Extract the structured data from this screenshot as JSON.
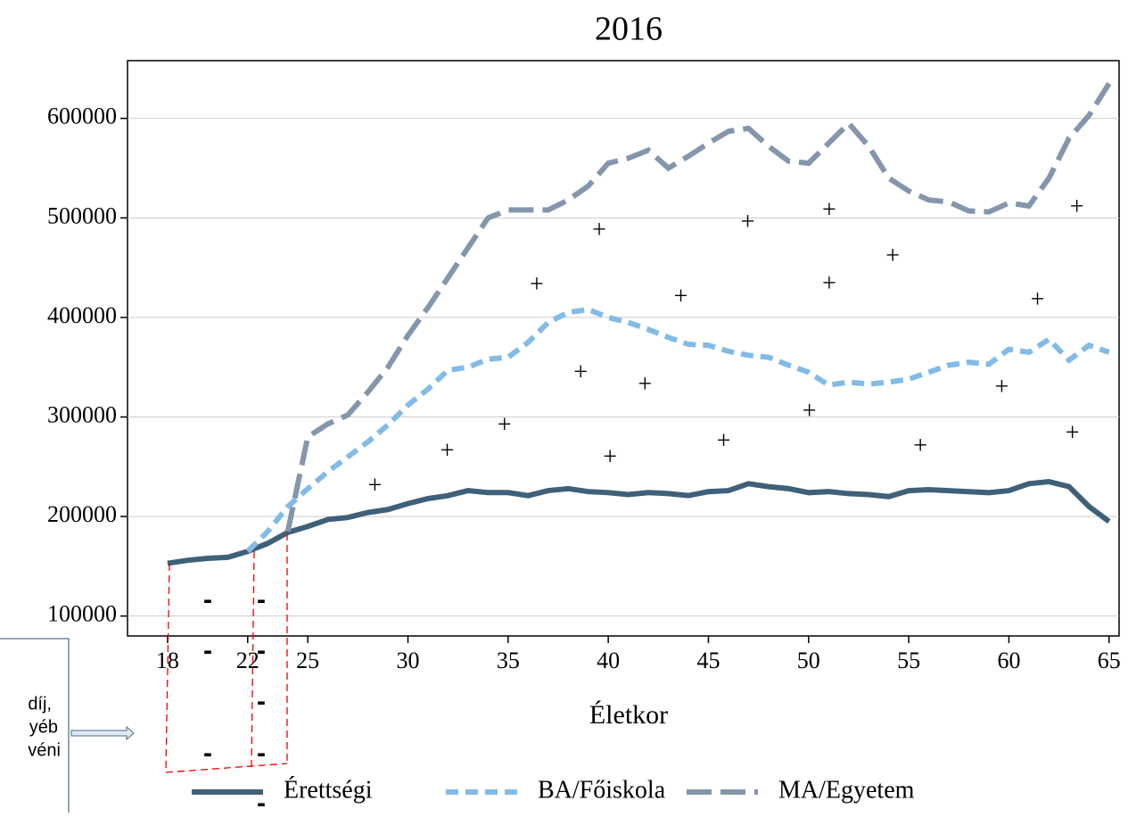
{
  "chart_data": {
    "type": "line",
    "title": "2016",
    "xlabel": "Életkor",
    "x": [
      18,
      19,
      20,
      21,
      22,
      23,
      24,
      25,
      26,
      27,
      28,
      29,
      30,
      31,
      32,
      33,
      34,
      35,
      36,
      37,
      38,
      39,
      40,
      41,
      42,
      43,
      44,
      45,
      46,
      47,
      48,
      49,
      50,
      51,
      52,
      53,
      54,
      55,
      56,
      57,
      58,
      59,
      60,
      61,
      62,
      63,
      64,
      65
    ],
    "series": [
      {
        "name": "Érettségi",
        "color": "#3f6079",
        "dash": "solid",
        "values": [
          153000,
          156000,
          158000,
          159000,
          165000,
          173000,
          184000,
          190000,
          197000,
          199000,
          204000,
          207000,
          213000,
          218000,
          221000,
          226000,
          224000,
          224000,
          221000,
          226000,
          228000,
          225000,
          224000,
          222000,
          224000,
          223000,
          221000,
          225000,
          226000,
          233000,
          230000,
          228000,
          224000,
          225000,
          223000,
          222000,
          220000,
          226000,
          227000,
          226000,
          225000,
          224000,
          226000,
          233000,
          235000,
          230000,
          210000,
          195000
        ]
      },
      {
        "name": "BA/Főiskola",
        "color": "#82bbe6",
        "dash": "short",
        "values": [
          null,
          null,
          null,
          null,
          165000,
          185000,
          210000,
          228000,
          245000,
          260000,
          275000,
          292000,
          312000,
          328000,
          347000,
          350000,
          358000,
          360000,
          375000,
          395000,
          405000,
          408000,
          400000,
          395000,
          388000,
          380000,
          373000,
          372000,
          366000,
          362000,
          360000,
          352000,
          345000,
          332000,
          335000,
          333000,
          335000,
          338000,
          345000,
          352000,
          355000,
          353000,
          368000,
          365000,
          378000,
          357000,
          372000,
          365000
        ]
      },
      {
        "name": "MA/Egyetem",
        "color": "#8496ac",
        "dash": "long",
        "values": [
          null,
          null,
          null,
          null,
          null,
          null,
          185000,
          280000,
          293000,
          302000,
          325000,
          350000,
          382000,
          410000,
          440000,
          470000,
          500000,
          508000,
          508000,
          508000,
          518000,
          532000,
          555000,
          560000,
          568000,
          550000,
          562000,
          575000,
          587000,
          590000,
          572000,
          557000,
          555000,
          575000,
          595000,
          572000,
          540000,
          527000,
          518000,
          516000,
          507000,
          506000,
          515000,
          512000,
          540000,
          580000,
          603000,
          635000
        ]
      }
    ],
    "markers": {
      "label": "+",
      "x": [
        28.35,
        31.96,
        34.82,
        36.43,
        38.62,
        39.55,
        40.09,
        41.83,
        43.62,
        45.76,
        46.96,
        50.04,
        51.03,
        51.03,
        54.2,
        55.58,
        59.64,
        61.43,
        63.39,
        63.17
      ],
      "y": [
        229000,
        264000,
        290000,
        431000,
        343000,
        486000,
        258000,
        331000,
        419000,
        274000,
        494000,
        304000,
        506000,
        432000,
        460000,
        269000,
        328000,
        416000,
        509000,
        282000
      ]
    },
    "xlim": [
      16,
      65.5
    ],
    "ylim": [
      80000,
      658000
    ],
    "xticks": [
      18,
      22,
      25,
      30,
      35,
      40,
      45,
      50,
      55,
      60,
      65
    ],
    "yticks": [
      100000,
      200000,
      300000,
      400000,
      500000,
      600000
    ],
    "grid": true,
    "legend": "bottom"
  },
  "overlay": {
    "dash_mark": "-",
    "note_lines": [
      "díj,",
      "yéb",
      "véni"
    ]
  }
}
